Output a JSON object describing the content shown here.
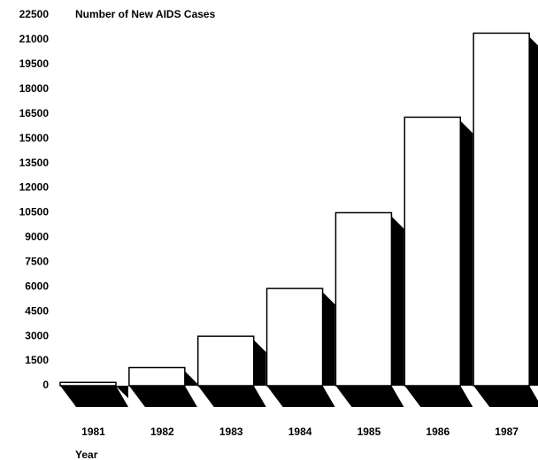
{
  "chart_data": {
    "type": "bar",
    "title": "Number of New AIDS Cases",
    "x_label": "Year",
    "categories": [
      "1981",
      "1982",
      "1983",
      "1984",
      "1985",
      "1986",
      "1987"
    ],
    "values": [
      200,
      1100,
      3000,
      5900,
      10500,
      16300,
      21400
    ],
    "color": "#ffffff",
    "ylim": [
      0,
      22500
    ],
    "yticks": [
      0,
      1500,
      3000,
      4500,
      6000,
      7500,
      9000,
      10500,
      12000,
      13500,
      15000,
      16500,
      18000,
      19500,
      21000,
      22500
    ],
    "grid": false
  }
}
